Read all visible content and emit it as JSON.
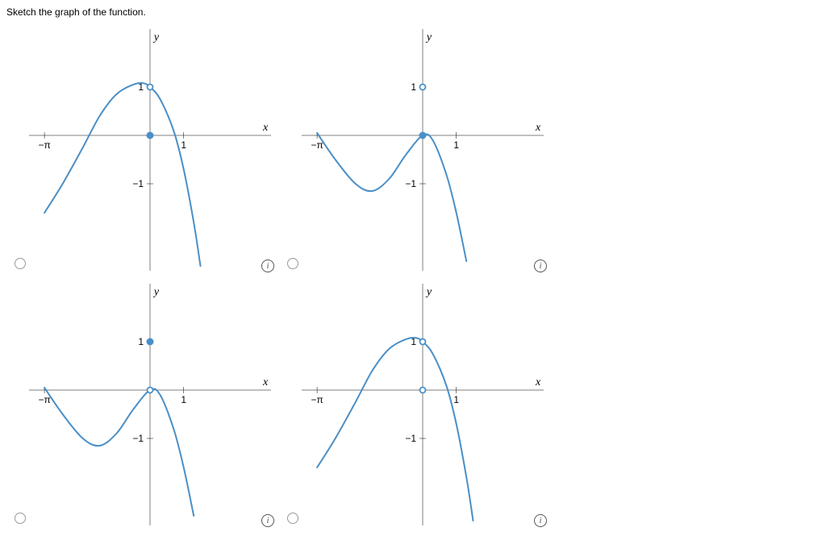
{
  "prompt": "Sketch the graph of the function.",
  "plot_style": {
    "background_color": "#ffffff",
    "axis_color": "#000000",
    "axis_stroke_width": 0.5,
    "curve_color": "#4a8fc7",
    "curve_stroke_width": 2.0,
    "tick_length": 4,
    "label_font_family": "Georgia, 'Times New Roman', serif",
    "label_font_style": "italic",
    "label_font_size": 14,
    "tick_font_size": 12,
    "tick_font_family": "Arial, Helvetica, sans-serif",
    "info_icon_glyph": "i",
    "point_radius_filled": 4,
    "point_radius_open": 3.5,
    "open_point_fill": "#ffffff"
  },
  "axes": {
    "x_label": "x",
    "y_label": "y",
    "x_ticks": [
      {
        "value": -3.1416,
        "label": "−π"
      },
      {
        "value": 1,
        "label": "1"
      }
    ],
    "y_ticks": [
      {
        "value": 1,
        "label": "1"
      },
      {
        "value": -1,
        "label": "−1"
      }
    ],
    "xlim": [
      -3.6,
      3.6
    ],
    "ylim": [
      -2.8,
      2.2
    ]
  },
  "options": [
    {
      "id": "A",
      "curve_type": "cos_minus_xsq",
      "curve_description": "y = cos(x) - x^2 shape, peak ~1 at x=0, falls both sides",
      "points": [
        {
          "x": 0,
          "y": 0,
          "filled": true
        },
        {
          "x": 0,
          "y": 1,
          "filled": false
        }
      ]
    },
    {
      "id": "B",
      "curve_type": "neg_cos_minus_x",
      "curve_description": "two downward lobes, left dip, crosses near 0, right falls",
      "points": [
        {
          "x": 0,
          "y": 0,
          "filled": true
        },
        {
          "x": 0,
          "y": 1,
          "filled": false
        }
      ]
    },
    {
      "id": "C",
      "curve_type": "neg_cos_minus_x",
      "curve_description": "same as B but open at origin, filled at (0,1)",
      "points": [
        {
          "x": 0,
          "y": 0,
          "filled": false
        },
        {
          "x": 0,
          "y": 1,
          "filled": true
        }
      ]
    },
    {
      "id": "D",
      "curve_type": "cos_minus_xsq",
      "curve_description": "same as A but open at origin",
      "points": [
        {
          "x": 0,
          "y": 0,
          "filled": false
        },
        {
          "x": 0,
          "y": 1,
          "filled": false
        }
      ]
    }
  ]
}
